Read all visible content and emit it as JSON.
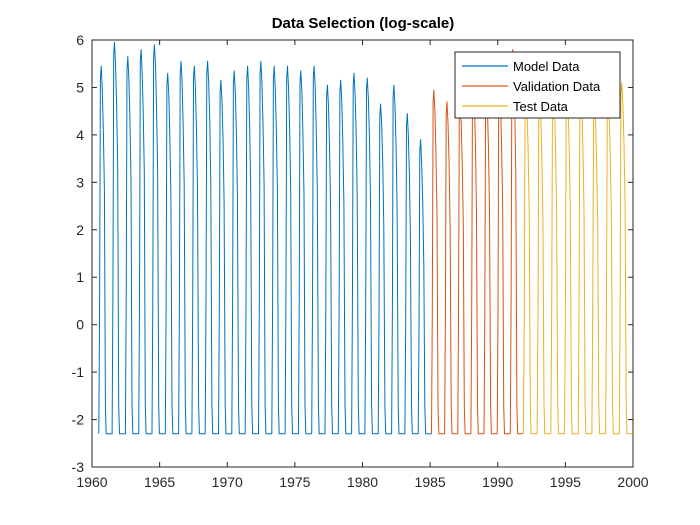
{
  "chart_data": {
    "type": "line",
    "title": "Data Selection (log-scale)",
    "xlabel": "",
    "ylabel": "",
    "xlim": [
      1960,
      2000
    ],
    "ylim": [
      -3,
      6
    ],
    "x_ticks": [
      1960,
      1965,
      1970,
      1975,
      1980,
      1985,
      1990,
      1995,
      2000
    ],
    "y_ticks": [
      -3,
      -2,
      -1,
      0,
      1,
      2,
      3,
      4,
      5,
      6
    ],
    "grid": false,
    "legend_position": "top-right",
    "baseline": -2.3,
    "series": [
      {
        "name": "Model Data",
        "color": "#0072BD",
        "x_range": [
          1960.5,
          1985.1
        ],
        "cycle_peaks": [
          5.45,
          5.95,
          5.65,
          5.8,
          5.9,
          5.3,
          5.55,
          5.45,
          5.55,
          5.15,
          5.35,
          5.45,
          5.55,
          5.45,
          5.45,
          5.35,
          5.45,
          5.05,
          5.15,
          5.3,
          5.2,
          4.65,
          5.05,
          4.45,
          3.9
        ]
      },
      {
        "name": "Validation Data",
        "color": "#D95319",
        "x_range": [
          1985.1,
          1991.9
        ],
        "cycle_peaks": [
          4.95,
          4.7,
          4.7,
          5.15,
          5.0,
          5.05,
          5.8
        ]
      },
      {
        "name": "Test Data",
        "color": "#EDB120",
        "x_range": [
          1991.9,
          2000.0
        ],
        "cycle_peaks": [
          5.0,
          4.9,
          5.05,
          5.0,
          5.05,
          4.75,
          4.85,
          5.1
        ]
      }
    ]
  }
}
